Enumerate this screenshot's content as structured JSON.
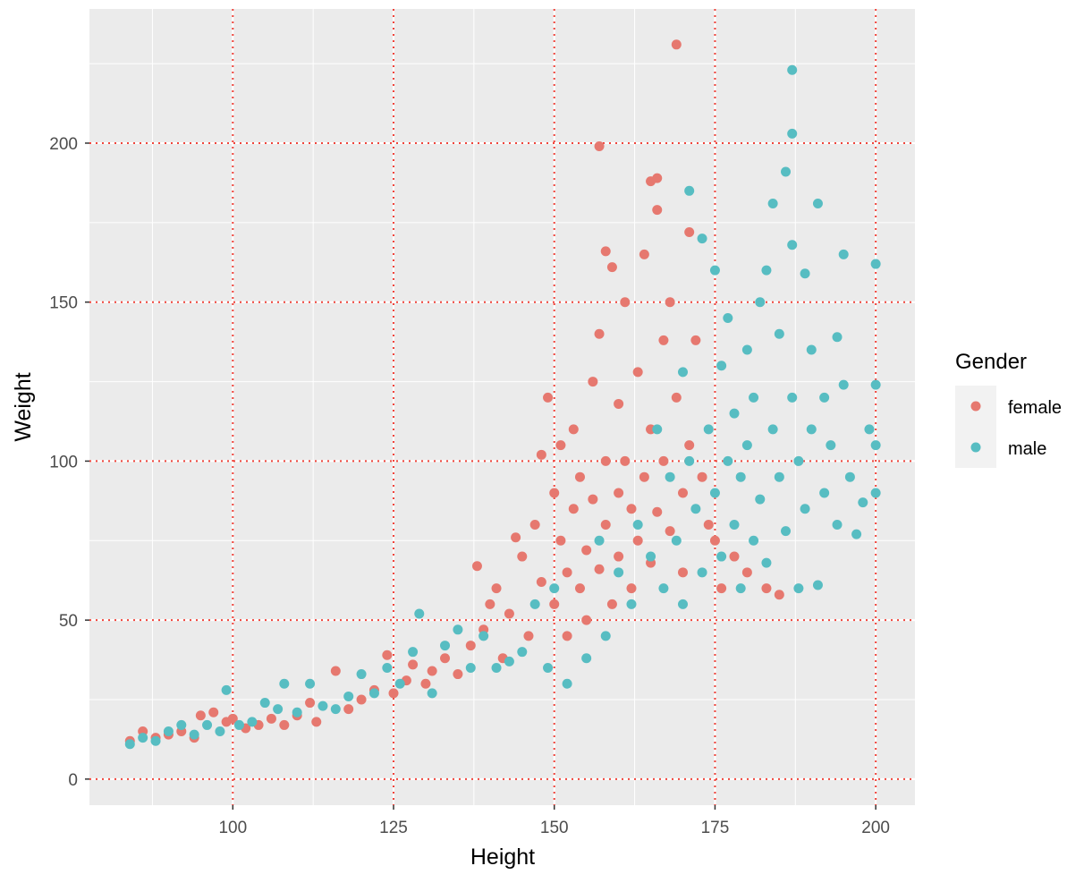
{
  "chart_data": {
    "type": "scatter",
    "title": "",
    "xlabel": "Height",
    "ylabel": "Weight",
    "xlim": [
      77.7,
      206.1
    ],
    "ylim": [
      -8.2,
      242.2
    ],
    "x_ticks": [
      100,
      125,
      150,
      175,
      200
    ],
    "y_ticks": [
      0,
      50,
      100,
      150,
      200
    ],
    "grid": true,
    "reference_lines": {
      "color": "#F0433A",
      "style": "dotted",
      "x": [
        100,
        125,
        150,
        175,
        200
      ],
      "y": [
        0,
        50,
        100,
        150,
        200
      ]
    },
    "legend": {
      "title": "Gender",
      "placement": "right"
    },
    "series": [
      {
        "name": "female",
        "color": "#E6786F",
        "points": [
          [
            84,
            12
          ],
          [
            86,
            15
          ],
          [
            88,
            13
          ],
          [
            90,
            14
          ],
          [
            92,
            15
          ],
          [
            94,
            13
          ],
          [
            95,
            20
          ],
          [
            97,
            21
          ],
          [
            99,
            18
          ],
          [
            100,
            19
          ],
          [
            102,
            16
          ],
          [
            104,
            17
          ],
          [
            106,
            19
          ],
          [
            108,
            17
          ],
          [
            110,
            20
          ],
          [
            112,
            24
          ],
          [
            113,
            18
          ],
          [
            116,
            34
          ],
          [
            118,
            22
          ],
          [
            120,
            25
          ],
          [
            122,
            28
          ],
          [
            124,
            39
          ],
          [
            125,
            27
          ],
          [
            127,
            31
          ],
          [
            128,
            36
          ],
          [
            130,
            30
          ],
          [
            131,
            34
          ],
          [
            133,
            38
          ],
          [
            135,
            33
          ],
          [
            137,
            42
          ],
          [
            138,
            67
          ],
          [
            139,
            47
          ],
          [
            140,
            55
          ],
          [
            141,
            60
          ],
          [
            142,
            38
          ],
          [
            143,
            52
          ],
          [
            144,
            76
          ],
          [
            145,
            70
          ],
          [
            146,
            45
          ],
          [
            147,
            80
          ],
          [
            148,
            102
          ],
          [
            148,
            62
          ],
          [
            149,
            120
          ],
          [
            150,
            90
          ],
          [
            150,
            55
          ],
          [
            151,
            105
          ],
          [
            151,
            75
          ],
          [
            152,
            65
          ],
          [
            152,
            45
          ],
          [
            153,
            85
          ],
          [
            153,
            110
          ],
          [
            154,
            60
          ],
          [
            154,
            95
          ],
          [
            155,
            72
          ],
          [
            155,
            50
          ],
          [
            156,
            88
          ],
          [
            156,
            125
          ],
          [
            157,
            199
          ],
          [
            157,
            140
          ],
          [
            157,
            66
          ],
          [
            158,
            100
          ],
          [
            158,
            166
          ],
          [
            158,
            80
          ],
          [
            159,
            161
          ],
          [
            159,
            55
          ],
          [
            160,
            118
          ],
          [
            160,
            90
          ],
          [
            160,
            70
          ],
          [
            161,
            150
          ],
          [
            161,
            100
          ],
          [
            162,
            60
          ],
          [
            162,
            85
          ],
          [
            163,
            128
          ],
          [
            163,
            75
          ],
          [
            164,
            165
          ],
          [
            164,
            95
          ],
          [
            165,
            188
          ],
          [
            165,
            110
          ],
          [
            165,
            68
          ],
          [
            166,
            189
          ],
          [
            166,
            179
          ],
          [
            166,
            84
          ],
          [
            167,
            138
          ],
          [
            167,
            100
          ],
          [
            168,
            150
          ],
          [
            168,
            78
          ],
          [
            169,
            231
          ],
          [
            169,
            120
          ],
          [
            170,
            90
          ],
          [
            170,
            65
          ],
          [
            171,
            172
          ],
          [
            171,
            105
          ],
          [
            172,
            138
          ],
          [
            173,
            95
          ],
          [
            174,
            80
          ],
          [
            175,
            75
          ],
          [
            176,
            60
          ],
          [
            178,
            70
          ],
          [
            180,
            65
          ],
          [
            183,
            60
          ],
          [
            185,
            58
          ]
        ]
      },
      {
        "name": "male",
        "color": "#57BDC2",
        "points": [
          [
            84,
            11
          ],
          [
            86,
            13
          ],
          [
            88,
            12
          ],
          [
            90,
            15
          ],
          [
            92,
            17
          ],
          [
            94,
            14
          ],
          [
            96,
            17
          ],
          [
            98,
            15
          ],
          [
            99,
            28
          ],
          [
            101,
            17
          ],
          [
            103,
            18
          ],
          [
            105,
            24
          ],
          [
            107,
            22
          ],
          [
            108,
            30
          ],
          [
            110,
            21
          ],
          [
            112,
            30
          ],
          [
            114,
            23
          ],
          [
            116,
            22
          ],
          [
            118,
            26
          ],
          [
            120,
            33
          ],
          [
            122,
            27
          ],
          [
            124,
            35
          ],
          [
            126,
            30
          ],
          [
            128,
            40
          ],
          [
            129,
            52
          ],
          [
            131,
            27
          ],
          [
            133,
            42
          ],
          [
            135,
            47
          ],
          [
            137,
            35
          ],
          [
            139,
            45
          ],
          [
            141,
            35
          ],
          [
            143,
            37
          ],
          [
            145,
            40
          ],
          [
            147,
            55
          ],
          [
            149,
            35
          ],
          [
            150,
            60
          ],
          [
            152,
            30
          ],
          [
            155,
            38
          ],
          [
            157,
            75
          ],
          [
            158,
            45
          ],
          [
            160,
            65
          ],
          [
            162,
            55
          ],
          [
            163,
            80
          ],
          [
            165,
            70
          ],
          [
            166,
            110
          ],
          [
            167,
            60
          ],
          [
            168,
            95
          ],
          [
            169,
            75
          ],
          [
            170,
            128
          ],
          [
            170,
            55
          ],
          [
            171,
            185
          ],
          [
            171,
            100
          ],
          [
            172,
            85
          ],
          [
            173,
            170
          ],
          [
            173,
            65
          ],
          [
            174,
            110
          ],
          [
            175,
            160
          ],
          [
            175,
            90
          ],
          [
            176,
            70
          ],
          [
            176,
            130
          ],
          [
            177,
            145
          ],
          [
            177,
            100
          ],
          [
            178,
            80
          ],
          [
            178,
            115
          ],
          [
            179,
            60
          ],
          [
            179,
            95
          ],
          [
            180,
            135
          ],
          [
            180,
            105
          ],
          [
            181,
            75
          ],
          [
            181,
            120
          ],
          [
            182,
            150
          ],
          [
            182,
            88
          ],
          [
            183,
            160
          ],
          [
            183,
            68
          ],
          [
            184,
            181
          ],
          [
            184,
            110
          ],
          [
            185,
            95
          ],
          [
            185,
            140
          ],
          [
            186,
            191
          ],
          [
            186,
            78
          ],
          [
            187,
            223
          ],
          [
            187,
            203
          ],
          [
            187,
            168
          ],
          [
            187,
            120
          ],
          [
            188,
            100
          ],
          [
            188,
            60
          ],
          [
            189,
            159
          ],
          [
            189,
            85
          ],
          [
            190,
            135
          ],
          [
            190,
            110
          ],
          [
            191,
            181
          ],
          [
            191,
            61
          ],
          [
            192,
            120
          ],
          [
            192,
            90
          ],
          [
            193,
            105
          ],
          [
            194,
            139
          ],
          [
            194,
            80
          ],
          [
            195,
            165
          ],
          [
            195,
            124
          ],
          [
            196,
            95
          ],
          [
            197,
            77
          ],
          [
            198,
            87
          ],
          [
            199,
            110
          ],
          [
            200,
            124
          ],
          [
            200,
            162
          ],
          [
            200,
            105
          ],
          [
            200,
            90
          ]
        ]
      }
    ]
  }
}
